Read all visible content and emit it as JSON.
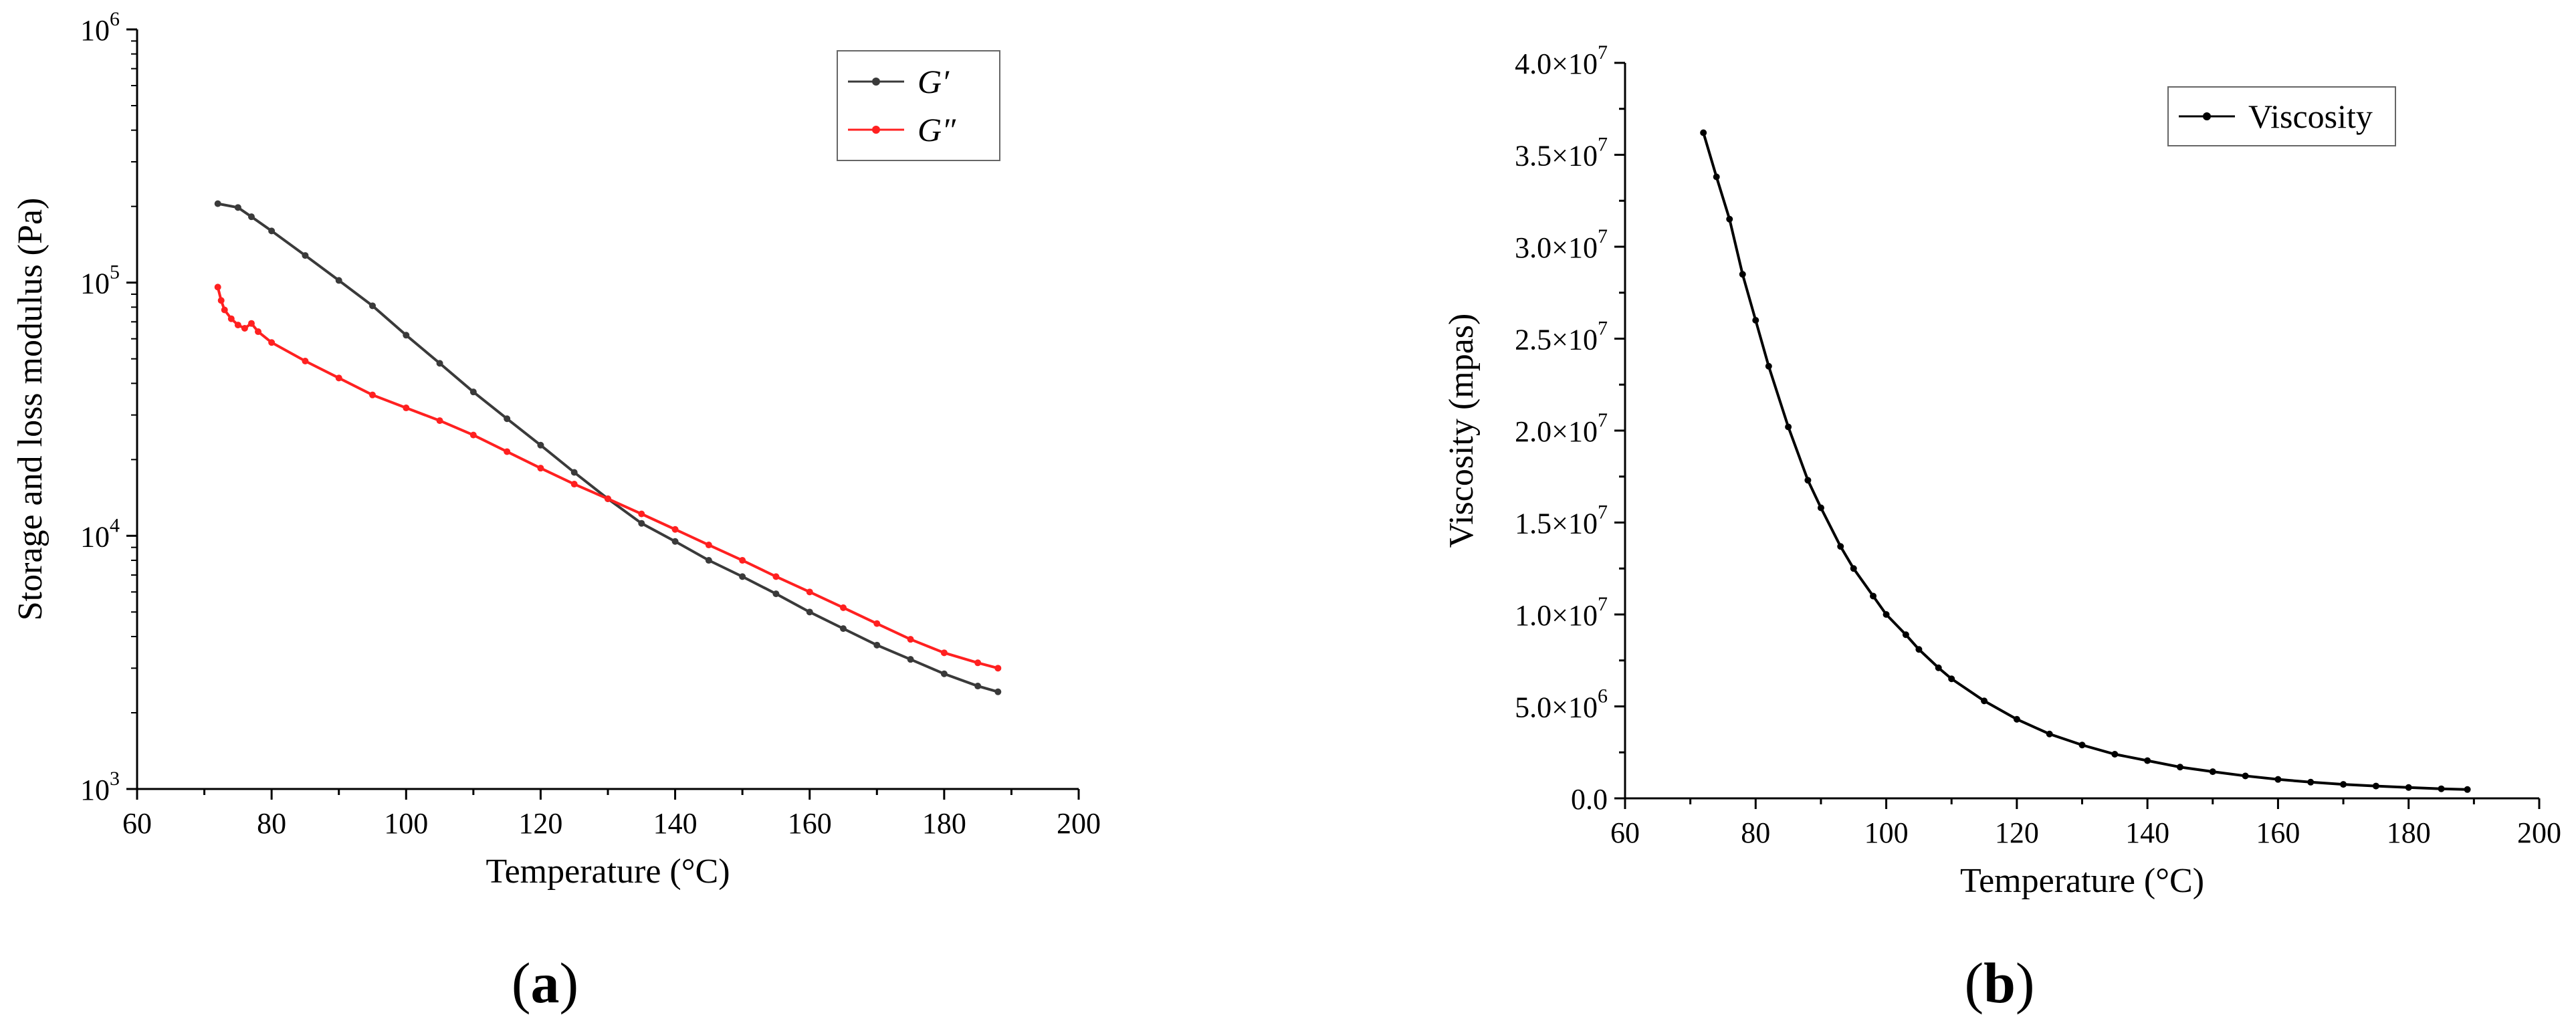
{
  "chart_data": [
    {
      "panel": "a",
      "type": "scatter",
      "xlabel": "Temperature (°C)",
      "ylabel": "Storage and loss modulus (Pa)",
      "xlim": [
        60,
        200
      ],
      "ylim": [
        1000,
        1000000
      ],
      "yscale": "log",
      "x_ticks": [
        "60",
        "80",
        "100",
        "120",
        "140",
        "160",
        "180",
        "200"
      ],
      "y_ticks": [
        {
          "base": "10",
          "exp": "3"
        },
        {
          "base": "10",
          "exp": "4"
        },
        {
          "base": "10",
          "exp": "5"
        },
        {
          "base": "10",
          "exp": "6"
        }
      ],
      "legend_position": "top-right",
      "series": [
        {
          "name": "G′",
          "color": "#3a3a3a",
          "x": [
            72,
            75,
            77,
            80,
            85,
            90,
            95,
            100,
            105,
            110,
            115,
            120,
            125,
            130,
            135,
            140,
            145,
            150,
            155,
            160,
            165,
            170,
            175,
            180,
            185,
            188
          ],
          "y": [
            205000,
            198000,
            182000,
            160000,
            128000,
            102000,
            81000,
            62000,
            48000,
            37000,
            29000,
            22800,
            17800,
            14000,
            11200,
            9500,
            8000,
            6900,
            5900,
            5000,
            4300,
            3700,
            3250,
            2850,
            2550,
            2420
          ]
        },
        {
          "name": "G″",
          "color": "#ff2020",
          "x": [
            72,
            72.5,
            73,
            74,
            75,
            76,
            77,
            78,
            80,
            85,
            90,
            95,
            100,
            105,
            110,
            115,
            120,
            125,
            130,
            135,
            140,
            145,
            150,
            155,
            160,
            165,
            170,
            175,
            180,
            185,
            188
          ],
          "y": [
            96000,
            85000,
            78000,
            72000,
            68000,
            66000,
            69000,
            64000,
            58000,
            49000,
            42000,
            36000,
            32000,
            28500,
            25000,
            21500,
            18500,
            16000,
            14000,
            12200,
            10600,
            9200,
            8000,
            6900,
            6000,
            5200,
            4500,
            3900,
            3450,
            3150,
            3000
          ]
        }
      ]
    },
    {
      "panel": "b",
      "type": "scatter",
      "xlabel": "Temperature (°C)",
      "ylabel": "Viscosity (mpas)",
      "xlim": [
        60,
        200
      ],
      "ylim": [
        0,
        40000000
      ],
      "x_ticks": [
        "60",
        "80",
        "100",
        "120",
        "140",
        "160",
        "180",
        "200"
      ],
      "y_ticks": [
        {
          "mant": "0.0",
          "exp": ""
        },
        {
          "mant": "5.0×10",
          "exp": "6"
        },
        {
          "mant": "1.0×10",
          "exp": "7"
        },
        {
          "mant": "1.5×10",
          "exp": "7"
        },
        {
          "mant": "2.0×10",
          "exp": "7"
        },
        {
          "mant": "2.5×10",
          "exp": "7"
        },
        {
          "mant": "3.0×10",
          "exp": "7"
        },
        {
          "mant": "3.5×10",
          "exp": "7"
        },
        {
          "mant": "4.0×10",
          "exp": "7"
        }
      ],
      "legend_position": "top-right",
      "series": [
        {
          "name": "Viscosity",
          "color": "#000000",
          "x": [
            72,
            74,
            76,
            78,
            80,
            82,
            85,
            88,
            90,
            93,
            95,
            98,
            100,
            103,
            105,
            108,
            110,
            115,
            120,
            125,
            130,
            135,
            140,
            145,
            150,
            155,
            160,
            165,
            170,
            175,
            180,
            185,
            189
          ],
          "y": [
            36200000,
            33800000,
            31500000,
            28500000,
            26000000,
            23500000,
            20200000,
            17300000,
            15800000,
            13700000,
            12500000,
            11000000,
            10000000,
            8900000,
            8100000,
            7100000,
            6500000,
            5300000,
            4300000,
            3500000,
            2900000,
            2400000,
            2050000,
            1700000,
            1450000,
            1220000,
            1030000,
            880000,
            760000,
            670000,
            590000,
            520000,
            480000
          ]
        }
      ]
    }
  ],
  "captions": {
    "a": "a",
    "b": "b"
  }
}
